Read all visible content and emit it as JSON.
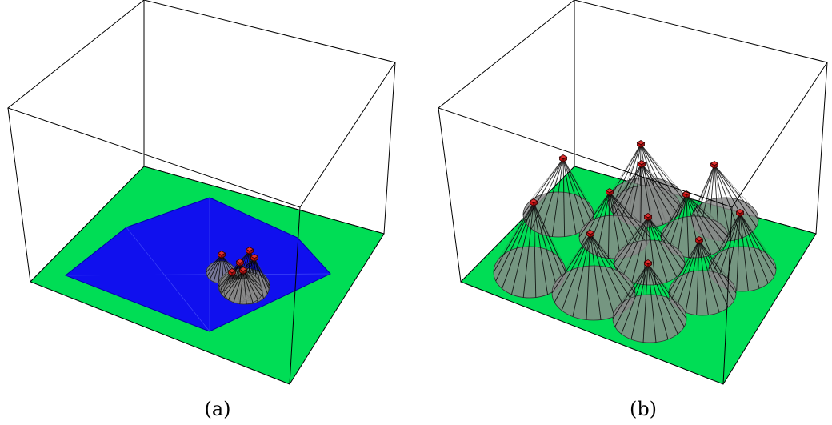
{
  "panels": [
    {
      "caption": "(a)",
      "colors": {
        "ground": "#00dd55",
        "coverage": "#1010ee",
        "cone": "#8a8a8a",
        "sensor": "#cc1010",
        "edge": "#000000"
      }
    },
    {
      "caption": "(b)",
      "colors": {
        "ground": "#00dd55",
        "cone": "#8a8a8a",
        "sensor": "#cc1010",
        "edge": "#000000"
      }
    }
  ]
}
